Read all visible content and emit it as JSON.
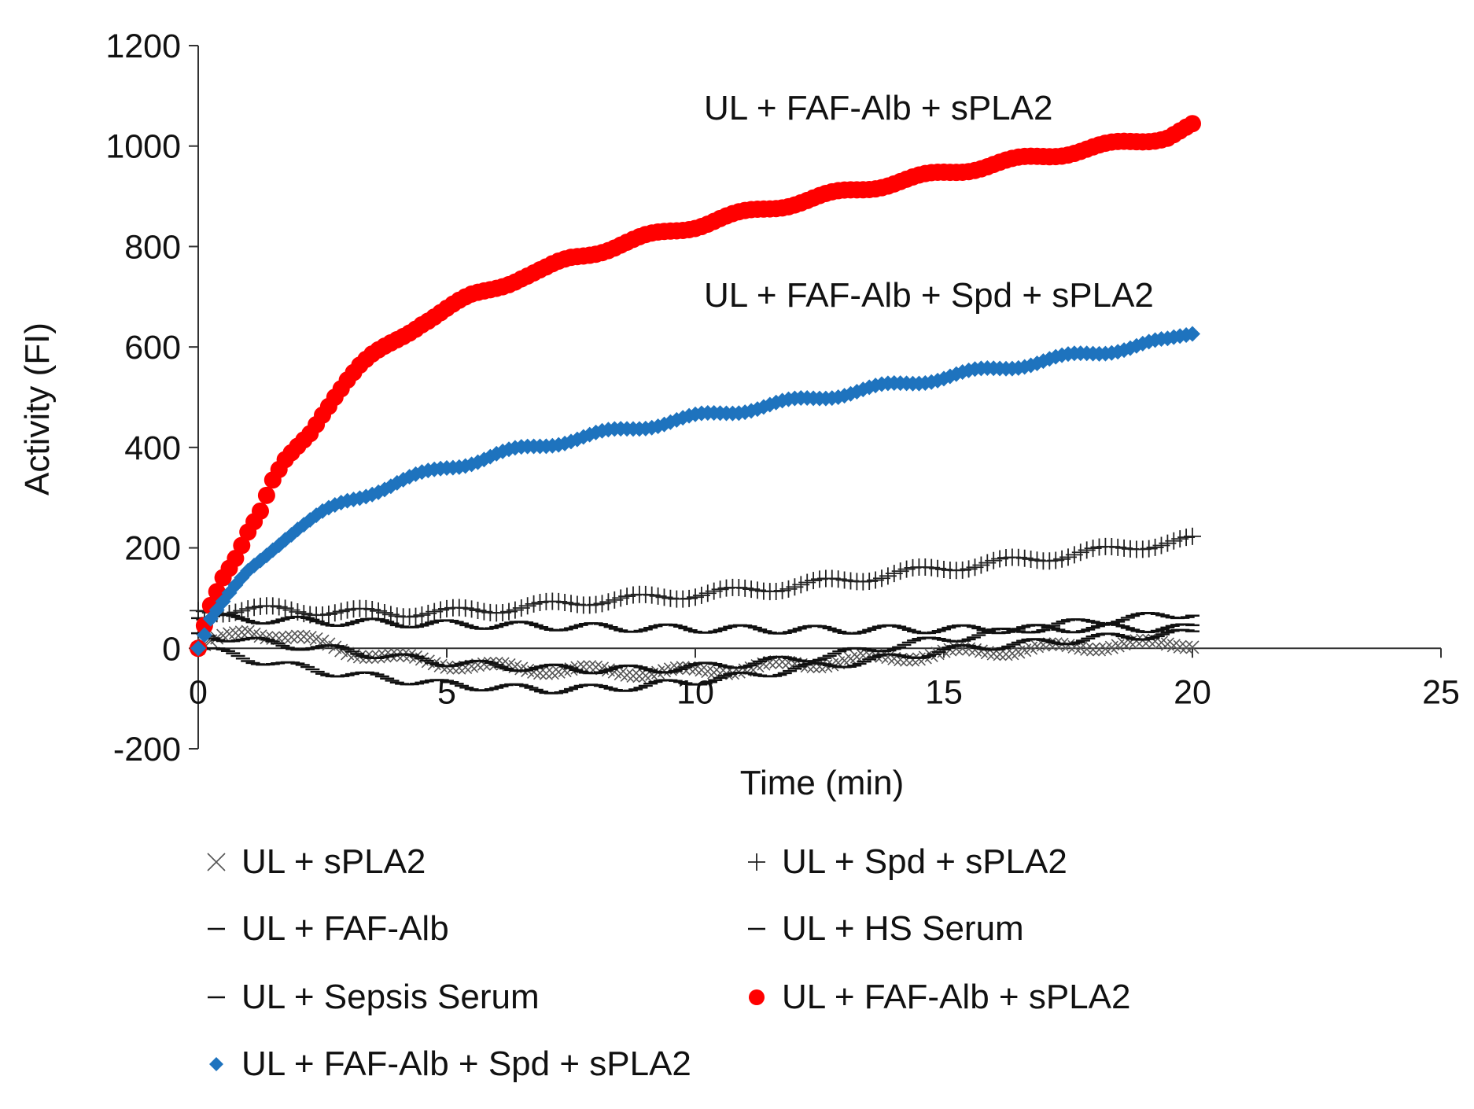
{
  "chart_data": {
    "type": "scatter",
    "title": "",
    "xlabel": "Time (min)",
    "ylabel": "Activity (FI)",
    "xlim": [
      0,
      25
    ],
    "ylim": [
      -200,
      1200
    ],
    "xticks": [
      "0",
      "5",
      "10",
      "15",
      "20",
      "25"
    ],
    "yticks": [
      "-200",
      "0",
      "200",
      "400",
      "600",
      "800",
      "1000",
      "1200"
    ],
    "legend_position": "bottom",
    "annotations": [
      {
        "text": "UL + FAF-Alb + sPLA2",
        "series": "UL + FAF-Alb + sPLA2"
      },
      {
        "text": "UL + FAF-Alb + Spd + sPLA2",
        "series": "UL + FAF-Alb + Spd + sPLA2"
      }
    ],
    "series": [
      {
        "name": "UL + sPLA2",
        "marker": "x",
        "color": "#555555",
        "points": [
          [
            0,
            0
          ],
          [
            1,
            35
          ],
          [
            2,
            20
          ],
          [
            3,
            -5
          ],
          [
            4,
            -20
          ],
          [
            5,
            -30
          ],
          [
            6,
            -38
          ],
          [
            7,
            -42
          ],
          [
            8,
            -45
          ],
          [
            9,
            -48
          ],
          [
            10,
            -46
          ],
          [
            11,
            -40
          ],
          [
            12,
            -32
          ],
          [
            13,
            -25
          ],
          [
            14,
            -18
          ],
          [
            15,
            -10
          ],
          [
            16,
            -5
          ],
          [
            17,
            0
          ],
          [
            18,
            5
          ],
          [
            19,
            8
          ],
          [
            20,
            10
          ]
        ]
      },
      {
        "name": "UL + Spd + sPLA2",
        "marker": "+",
        "color": "#222222",
        "points": [
          [
            0,
            75
          ],
          [
            1,
            78
          ],
          [
            2,
            75
          ],
          [
            3,
            72
          ],
          [
            4,
            70
          ],
          [
            5,
            72
          ],
          [
            6,
            78
          ],
          [
            7,
            85
          ],
          [
            8,
            95
          ],
          [
            9,
            100
          ],
          [
            10,
            108
          ],
          [
            11,
            115
          ],
          [
            12,
            125
          ],
          [
            13,
            135
          ],
          [
            14,
            148
          ],
          [
            15,
            160
          ],
          [
            16,
            170
          ],
          [
            17,
            180
          ],
          [
            18,
            192
          ],
          [
            19,
            205
          ],
          [
            20,
            215
          ]
        ]
      },
      {
        "name": "UL + FAF-Alb",
        "marker": "-",
        "color": "#111111",
        "points": [
          [
            0,
            0
          ],
          [
            1,
            -20
          ],
          [
            2,
            -38
          ],
          [
            3,
            -52
          ],
          [
            4,
            -62
          ],
          [
            5,
            -72
          ],
          [
            6,
            -78
          ],
          [
            7,
            -82
          ],
          [
            8,
            -80
          ],
          [
            9,
            -75
          ],
          [
            10,
            -65
          ],
          [
            11,
            -55
          ],
          [
            12,
            -42
          ],
          [
            13,
            -30
          ],
          [
            14,
            -18
          ],
          [
            15,
            -5
          ],
          [
            16,
            5
          ],
          [
            17,
            12
          ],
          [
            18,
            20
          ],
          [
            19,
            25
          ],
          [
            20,
            30
          ]
        ]
      },
      {
        "name": "UL + HS Serum",
        "marker": "-",
        "color": "#111111",
        "points": [
          [
            0,
            30
          ],
          [
            1,
            15
          ],
          [
            2,
            5
          ],
          [
            3,
            -5
          ],
          [
            4,
            -18
          ],
          [
            5,
            -28
          ],
          [
            6,
            -35
          ],
          [
            7,
            -40
          ],
          [
            8,
            -42
          ],
          [
            9,
            -42
          ],
          [
            10,
            -38
          ],
          [
            11,
            -30
          ],
          [
            12,
            -22
          ],
          [
            13,
            -10
          ],
          [
            14,
            5
          ],
          [
            15,
            18
          ],
          [
            16,
            30
          ],
          [
            17,
            42
          ],
          [
            18,
            55
          ],
          [
            19,
            62
          ],
          [
            20,
            70
          ]
        ]
      },
      {
        "name": "UL + Sepsis Serum",
        "marker": "-",
        "color": "#111111",
        "points": [
          [
            0,
            60
          ],
          [
            1,
            58
          ],
          [
            2,
            55
          ],
          [
            3,
            52
          ],
          [
            4,
            50
          ],
          [
            5,
            48
          ],
          [
            6,
            46
          ],
          [
            7,
            44
          ],
          [
            8,
            42
          ],
          [
            9,
            40
          ],
          [
            10,
            39
          ],
          [
            11,
            38
          ],
          [
            12,
            37
          ],
          [
            13,
            37
          ],
          [
            14,
            38
          ],
          [
            15,
            38
          ],
          [
            16,
            38
          ],
          [
            17,
            39
          ],
          [
            18,
            40
          ],
          [
            19,
            40
          ],
          [
            20,
            40
          ]
        ]
      },
      {
        "name": "UL + FAF-Alb + sPLA2",
        "marker": "circle",
        "color": "#ff0000",
        "points": [
          [
            0,
            0
          ],
          [
            0.25,
            85
          ],
          [
            0.5,
            145
          ],
          [
            0.75,
            185
          ],
          [
            1,
            235
          ],
          [
            1.25,
            272
          ],
          [
            1.5,
            330
          ],
          [
            1.75,
            370
          ],
          [
            2,
            400
          ],
          [
            2.25,
            430
          ],
          [
            2.5,
            470
          ],
          [
            2.75,
            505
          ],
          [
            3,
            535
          ],
          [
            3.25,
            560
          ],
          [
            3.5,
            580
          ],
          [
            4,
            615
          ],
          [
            4.5,
            650
          ],
          [
            5,
            675
          ],
          [
            5.5,
            700
          ],
          [
            6,
            720
          ],
          [
            6.5,
            740
          ],
          [
            7,
            755
          ],
          [
            7.5,
            775
          ],
          [
            8,
            790
          ],
          [
            8.5,
            805
          ],
          [
            9,
            818
          ],
          [
            9.5,
            830
          ],
          [
            10,
            842
          ],
          [
            10.5,
            855
          ],
          [
            11,
            866
          ],
          [
            11.5,
            877
          ],
          [
            12,
            888
          ],
          [
            12.5,
            898
          ],
          [
            13,
            908
          ],
          [
            13.5,
            918
          ],
          [
            14,
            928
          ],
          [
            14.5,
            937
          ],
          [
            15,
            946
          ],
          [
            15.5,
            955
          ],
          [
            16,
            964
          ],
          [
            16.5,
            972
          ],
          [
            17,
            980
          ],
          [
            17.5,
            988
          ],
          [
            18,
            996
          ],
          [
            18.5,
            1004
          ],
          [
            19,
            1012
          ],
          [
            19.5,
            1020
          ],
          [
            20,
            1040
          ]
        ]
      },
      {
        "name": "UL + FAF-Alb + Spd + sPLA2",
        "marker": "diamond",
        "color": "#1e73be",
        "points": [
          [
            0,
            0
          ],
          [
            0.25,
            60
          ],
          [
            0.5,
            90
          ],
          [
            0.75,
            120
          ],
          [
            1,
            150
          ],
          [
            1.25,
            175
          ],
          [
            1.5,
            200
          ],
          [
            1.75,
            222
          ],
          [
            2,
            240
          ],
          [
            2.5,
            268
          ],
          [
            3,
            292
          ],
          [
            3.5,
            312
          ],
          [
            4,
            330
          ],
          [
            4.5,
            345
          ],
          [
            5,
            360
          ],
          [
            5.5,
            372
          ],
          [
            6,
            385
          ],
          [
            6.5,
            396
          ],
          [
            7,
            406
          ],
          [
            7.5,
            416
          ],
          [
            8,
            425
          ],
          [
            8.5,
            434
          ],
          [
            9,
            443
          ],
          [
            9.5,
            452
          ],
          [
            10,
            460
          ],
          [
            10.5,
            468
          ],
          [
            11,
            476
          ],
          [
            11.5,
            484
          ],
          [
            12,
            492
          ],
          [
            12.5,
            500
          ],
          [
            13,
            508
          ],
          [
            13.5,
            516
          ],
          [
            14,
            524
          ],
          [
            14.5,
            532
          ],
          [
            15,
            540
          ],
          [
            15.5,
            548
          ],
          [
            16,
            556
          ],
          [
            16.5,
            564
          ],
          [
            17,
            572
          ],
          [
            17.5,
            580
          ],
          [
            18,
            588
          ],
          [
            18.5,
            596
          ],
          [
            19,
            604
          ],
          [
            19.5,
            612
          ],
          [
            20,
            630
          ]
        ]
      }
    ]
  }
}
